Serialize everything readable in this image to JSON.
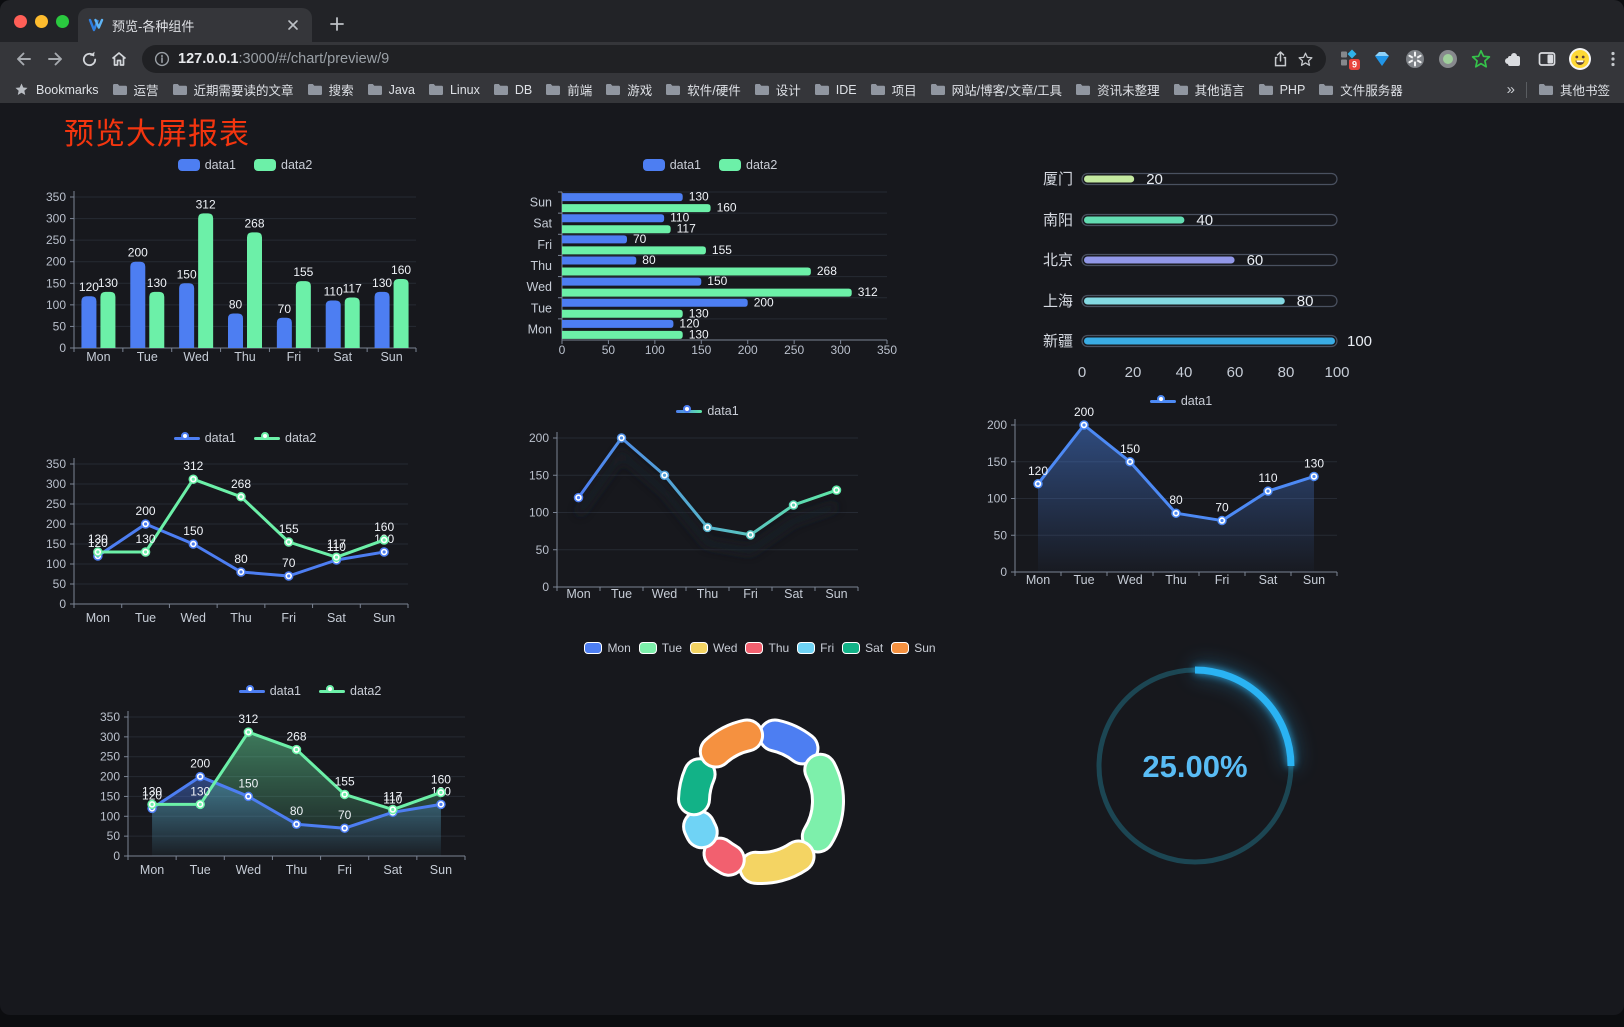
{
  "browser": {
    "tab_title": "预览-各种组件",
    "url_host": "127.0.0.1",
    "url_rest": ":3000/#/chart/preview/9",
    "bookmarks_label": "Bookmarks",
    "bookmarks": [
      "运营",
      "近期需要读的文章",
      "搜索",
      "Java",
      "Linux",
      "DB",
      "前端",
      "游戏",
      "软件/硬件",
      "设计",
      "IDE",
      "项目",
      "网站/博客/文章/工具",
      "资讯未整理",
      "其他语言",
      "PHP",
      "文件服务器"
    ],
    "overflow_chevron": "»",
    "other_bookmarks": "其他书签",
    "extension_badge": "9"
  },
  "page": {
    "title": "预览大屏报表",
    "title_color": "#f4350f"
  },
  "colors": {
    "series_blue": "#4d7ef2",
    "series_green": "#6cf0a8",
    "background": "#17181d",
    "grid": "#262a33",
    "axis": "#7b8494"
  },
  "chart_data": [
    {
      "id": "c1",
      "type": "bar",
      "categories": [
        "Mon",
        "Tue",
        "Wed",
        "Thu",
        "Fri",
        "Sat",
        "Sun"
      ],
      "series": [
        {
          "name": "data1",
          "color": "#4d7ef2",
          "values": [
            120,
            200,
            150,
            80,
            70,
            110,
            130
          ]
        },
        {
          "name": "data2",
          "color": "#6cf0a8",
          "values": [
            130,
            130,
            312,
            268,
            155,
            117,
            160
          ]
        }
      ],
      "ylim": [
        0,
        350
      ],
      "ystep": 50,
      "labels": true
    },
    {
      "id": "c2",
      "type": "hbar",
      "categories": [
        "Mon",
        "Tue",
        "Wed",
        "Thu",
        "Fri",
        "Sat",
        "Sun"
      ],
      "series": [
        {
          "name": "data1",
          "color": "#4d7ef2",
          "values": [
            120,
            200,
            150,
            80,
            70,
            110,
            130
          ]
        },
        {
          "name": "data2",
          "color": "#6cf0a8",
          "values": [
            130,
            130,
            312,
            268,
            155,
            117,
            160
          ]
        }
      ],
      "xlim": [
        0,
        350
      ],
      "xstep": 50,
      "labels": true
    },
    {
      "id": "c3",
      "type": "capsule-bar",
      "categories": [
        "厦门",
        "南阳",
        "北京",
        "上海",
        "新疆"
      ],
      "values": [
        20,
        40,
        60,
        80,
        100
      ],
      "colors": [
        "#c4e9a0",
        "#63dcb2",
        "#9298e8",
        "#84d9e2",
        "#3aace4"
      ],
      "xticks": [
        0,
        20,
        40,
        60,
        80,
        100
      ],
      "xlim": [
        0,
        100
      ]
    },
    {
      "id": "c4",
      "type": "line",
      "categories": [
        "Mon",
        "Tue",
        "Wed",
        "Thu",
        "Fri",
        "Sat",
        "Sun"
      ],
      "series": [
        {
          "name": "data1",
          "color": "#4d7ef2",
          "values": [
            120,
            200,
            150,
            80,
            70,
            110,
            130
          ]
        },
        {
          "name": "data2",
          "color": "#6cf0a8",
          "values": [
            130,
            130,
            312,
            268,
            155,
            117,
            160
          ]
        }
      ],
      "ylim": [
        0,
        350
      ],
      "ystep": 50,
      "labels": true
    },
    {
      "id": "c5",
      "type": "line",
      "categories": [
        "Mon",
        "Tue",
        "Wed",
        "Thu",
        "Fri",
        "Sat",
        "Sun"
      ],
      "series": [
        {
          "name": "data1",
          "color": "#4d7ef2",
          "gradient": [
            "#4d7ef2",
            "#5fe8a6"
          ],
          "values": [
            120,
            200,
            150,
            80,
            70,
            110,
            130
          ]
        }
      ],
      "ylim": [
        0,
        200
      ],
      "ystep": 50,
      "labels": false,
      "shadow": true
    },
    {
      "id": "c6",
      "type": "area",
      "categories": [
        "Mon",
        "Tue",
        "Wed",
        "Thu",
        "Fri",
        "Sat",
        "Sun"
      ],
      "series": [
        {
          "name": "data1",
          "color": "#4d8af5",
          "area": true,
          "values": [
            120,
            200,
            150,
            80,
            70,
            110,
            130
          ]
        }
      ],
      "ylim": [
        0,
        200
      ],
      "ystep": 50,
      "labels": true
    },
    {
      "id": "c7",
      "type": "area",
      "categories": [
        "Mon",
        "Tue",
        "Wed",
        "Thu",
        "Fri",
        "Sat",
        "Sun"
      ],
      "series": [
        {
          "name": "data1",
          "color": "#4d7ef2",
          "area": true,
          "values": [
            120,
            200,
            150,
            80,
            70,
            110,
            130
          ]
        },
        {
          "name": "data2",
          "color": "#6cf0a8",
          "area": true,
          "values": [
            130,
            130,
            312,
            268,
            155,
            117,
            160
          ]
        }
      ],
      "ylim": [
        0,
        350
      ],
      "ystep": 50,
      "labels": true
    },
    {
      "id": "c8",
      "type": "pie",
      "categories": [
        "Mon",
        "Tue",
        "Wed",
        "Thu",
        "Fri",
        "Sat",
        "Sun"
      ],
      "values": [
        120,
        200,
        150,
        80,
        70,
        110,
        130
      ],
      "colors": [
        "#4d7ef2",
        "#7df0ab",
        "#f4d463",
        "#f2606f",
        "#6fd3f5",
        "#12b287",
        "#f59140"
      ]
    },
    {
      "id": "c9",
      "type": "gauge",
      "percent": 25,
      "value_label": "25.00%",
      "color": "#2ab3f3",
      "track_color": "#1c4653",
      "text_color": "#59bcf5"
    }
  ]
}
